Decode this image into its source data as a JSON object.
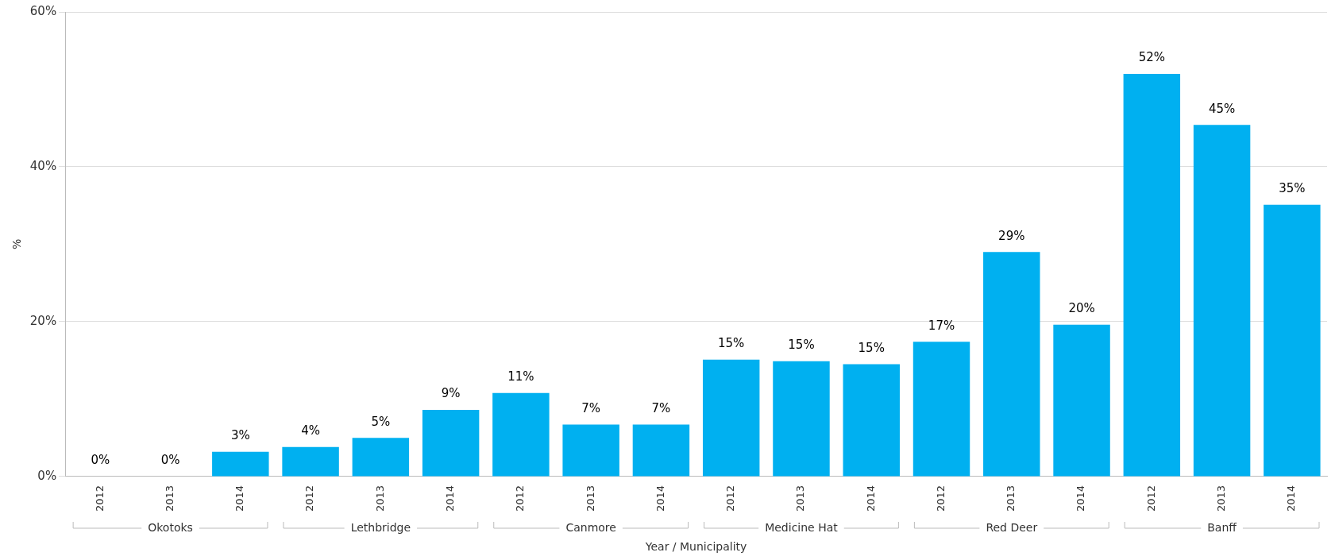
{
  "chart_data": {
    "type": "bar",
    "xlabel": "Year / Municipality",
    "ylabel": "%",
    "categories": [
      "2012",
      "2013",
      "2014",
      "2012",
      "2013",
      "2014",
      "2012",
      "2013",
      "2014",
      "2012",
      "2013",
      "2014",
      "2012",
      "2013",
      "2014",
      "2012",
      "2013",
      "2014"
    ],
    "values": [
      0,
      0,
      3.2,
      3.8,
      5.0,
      8.6,
      10.8,
      6.7,
      6.7,
      15.1,
      14.9,
      14.5,
      17.4,
      29.0,
      19.6,
      52.0,
      45.4,
      35.1
    ],
    "value_labels": [
      "0%",
      "0%",
      "3%",
      "4%",
      "5%",
      "9%",
      "11%",
      "7%",
      "7%",
      "15%",
      "15%",
      "15%",
      "17%",
      "29%",
      "20%",
      "52%",
      "45%",
      "35%"
    ],
    "color": "#00b0f0",
    "ylim": [
      0,
      60
    ],
    "yticks": [
      {
        "value": 0,
        "label": "0%"
      },
      {
        "value": 20,
        "label": "20%"
      },
      {
        "value": 40,
        "label": "40%"
      },
      {
        "value": 60,
        "label": "60%"
      }
    ],
    "grid": "y",
    "legend": false,
    "annotations": [
      "Okotoks",
      "Lethbridge",
      "Canmore",
      "Medicine Hat",
      "Red Deer",
      "Banff"
    ]
  }
}
